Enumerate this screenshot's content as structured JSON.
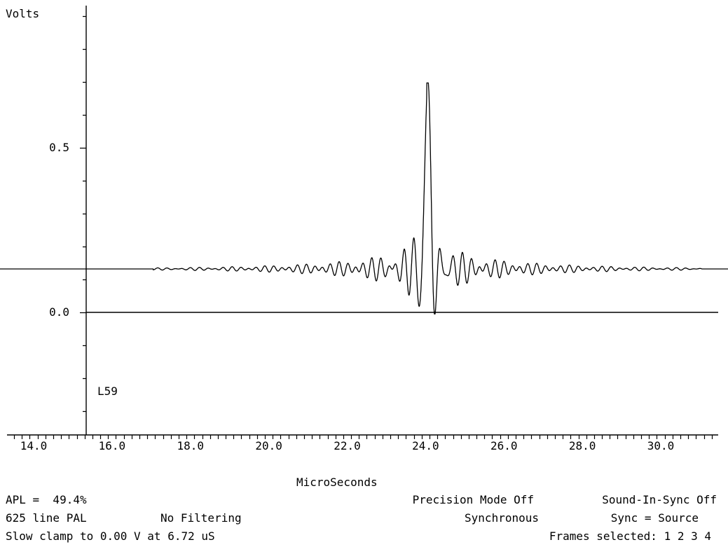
{
  "chart_data": {
    "type": "line",
    "ylabel": "Volts",
    "xlabel": "MicroSeconds",
    "x_ticks": [
      "14.0",
      "16.0",
      "18.0",
      "20.0",
      "22.0",
      "24.0",
      "26.0",
      "28.0",
      "30.0"
    ],
    "y_ticks": [
      "0.5",
      "0.0"
    ],
    "xlim": [
      12.9,
      31.9
    ],
    "ylim": [
      -0.36,
      0.92
    ],
    "reference_level": 0.0,
    "blanking_level": 0.132,
    "pulse_center_us": 24.05,
    "pulse_peak_v": 0.697,
    "pulse_trough_v": -0.005,
    "ringing_period_us": 0.21,
    "grid": false,
    "line_color": "#000000",
    "line_label": "L59"
  },
  "status": {
    "apl": "APL =  49.4%",
    "standard": "625 line PAL",
    "filtering": "No Filtering",
    "clamp": "Slow clamp to 0.00 V at 6.72 uS",
    "precision": "Precision Mode Off",
    "sound_in_sync": "Sound-In-Sync Off",
    "sync_mode": "Synchronous",
    "sync_source": "Sync = Source",
    "frames": "Frames selected: 1 2 3 4"
  }
}
